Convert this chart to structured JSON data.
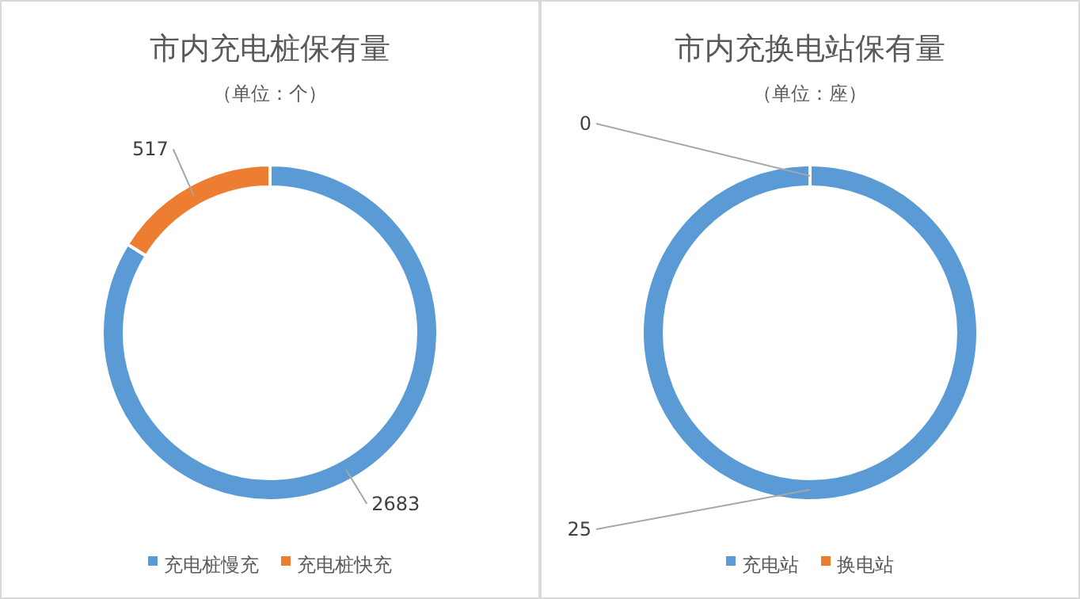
{
  "chart_data": [
    {
      "type": "donut",
      "title": "市内充电桩保有量",
      "subtitle": "（单位：个）",
      "categories": [
        "充电桩慢充",
        "充电桩快充"
      ],
      "values": [
        2683,
        517
      ],
      "colors": [
        "#5b9bd5",
        "#ed7d31"
      ],
      "legend": "bottom",
      "data_labels": true
    },
    {
      "type": "donut",
      "title": "市内充换电站保有量",
      "subtitle": "（单位：座）",
      "categories": [
        "充电站",
        "换电站"
      ],
      "values": [
        25,
        0
      ],
      "value_labels": [
        "25",
        "0"
      ],
      "colors": [
        "#5b9bd5",
        "#ed7d31"
      ],
      "legend": "bottom"
    }
  ]
}
